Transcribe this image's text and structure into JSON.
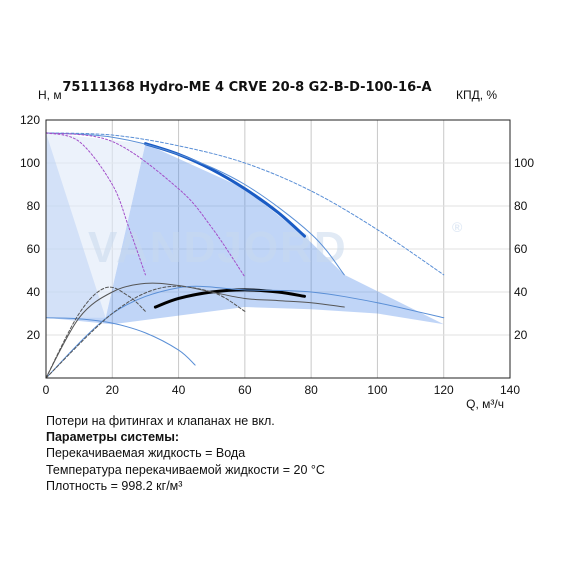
{
  "chart_data": {
    "type": "line",
    "title": "75111368 Hydro-ME 4 CRVE 20-8 G2-B-D-100-16-A",
    "ylabel": "H, м",
    "y2label": "КПД, %",
    "xlabel": "Q, м³/ч",
    "xlim": [
      0,
      140
    ],
    "ylim": [
      0,
      120
    ],
    "y2lim": [
      0,
      120
    ],
    "x_ticks": [
      0,
      20,
      40,
      60,
      80,
      100,
      120,
      140
    ],
    "y_ticks": [
      20,
      40,
      60,
      80,
      100,
      120
    ],
    "y2_ticks": [
      20,
      40,
      60,
      80,
      100
    ],
    "grid": true,
    "watermark": "VANDJORD",
    "watermark_mark": "®",
    "colors": {
      "duty_curve": "#1a5bc4",
      "efficiency_curve": "#000000",
      "operating_region": "#4a86e8",
      "thin_blue": "#5a8fd6",
      "violet": "#a34fc9",
      "gray": "#555555",
      "grid": "#c8c8c8"
    },
    "series": [
      {
        "role": "duty-curve",
        "x": [
          30,
          40,
          50,
          60,
          70,
          78
        ],
        "y": [
          109,
          104,
          97,
          88,
          77,
          66
        ]
      },
      {
        "role": "efficiency-curve",
        "axis": "y2",
        "x": [
          33,
          40,
          50,
          60,
          70,
          78
        ],
        "y": [
          33,
          37,
          40,
          41,
          40,
          38
        ]
      },
      {
        "role": "max-speed-curve",
        "x": [
          0,
          20,
          40,
          60,
          80,
          100,
          120
        ],
        "y": [
          114,
          113,
          108,
          100,
          87,
          69,
          48
        ]
      },
      {
        "role": "speed-curve-2",
        "x": [
          0,
          20,
          40,
          60,
          80,
          90
        ],
        "y": [
          114,
          112,
          104,
          90,
          67,
          48
        ]
      },
      {
        "role": "min-speed-curve",
        "x": [
          0,
          10,
          20,
          30,
          40,
          45
        ],
        "y": [
          28,
          27.5,
          25.5,
          21,
          13,
          6
        ]
      },
      {
        "role": "violet-curve-1",
        "x": [
          0,
          10,
          20,
          25,
          30
        ],
        "y": [
          114,
          110,
          90,
          70,
          48
        ]
      },
      {
        "role": "violet-curve-2",
        "x": [
          0,
          20,
          40,
          50,
          60
        ],
        "y": [
          114,
          110,
          88,
          70,
          47
        ]
      },
      {
        "role": "eff-curve-1",
        "axis": "y2",
        "x": [
          0,
          10,
          20,
          30,
          40,
          50,
          60,
          70,
          80,
          90
        ],
        "y": [
          0,
          28,
          40,
          44,
          43,
          40,
          37,
          36,
          35,
          33
        ]
      },
      {
        "role": "eff-curve-2",
        "axis": "y2",
        "x": [
          0,
          20,
          40,
          60,
          80,
          100,
          120
        ],
        "y": [
          0,
          30,
          42,
          41,
          40,
          35,
          28
        ]
      },
      {
        "role": "eff-curve-3",
        "axis": "y2",
        "x": [
          0,
          10,
          18,
          25,
          30
        ],
        "y": [
          0,
          30,
          42,
          38,
          31
        ]
      },
      {
        "role": "eff-curve-4",
        "axis": "y2",
        "x": [
          0,
          20,
          35,
          50,
          60
        ],
        "y": [
          0,
          30,
          42,
          40,
          31
        ]
      }
    ],
    "operating_region": {
      "x": [
        0,
        18,
        30,
        60,
        78,
        90,
        120,
        100,
        80,
        60,
        40,
        20,
        0
      ],
      "y": [
        114,
        28,
        109,
        88,
        66,
        48,
        25,
        30,
        32,
        33,
        29,
        25,
        28
      ]
    }
  },
  "notes": {
    "line1": "Потери на фитингах и клапанах не вкл.",
    "line2": "Параметры системы:",
    "line3": "Перекачиваемая жидкость = Вода",
    "line4": "Температура перекачиваемой жидкости = 20 °C",
    "line5": "Плотность = 998.2 кг/м³"
  }
}
